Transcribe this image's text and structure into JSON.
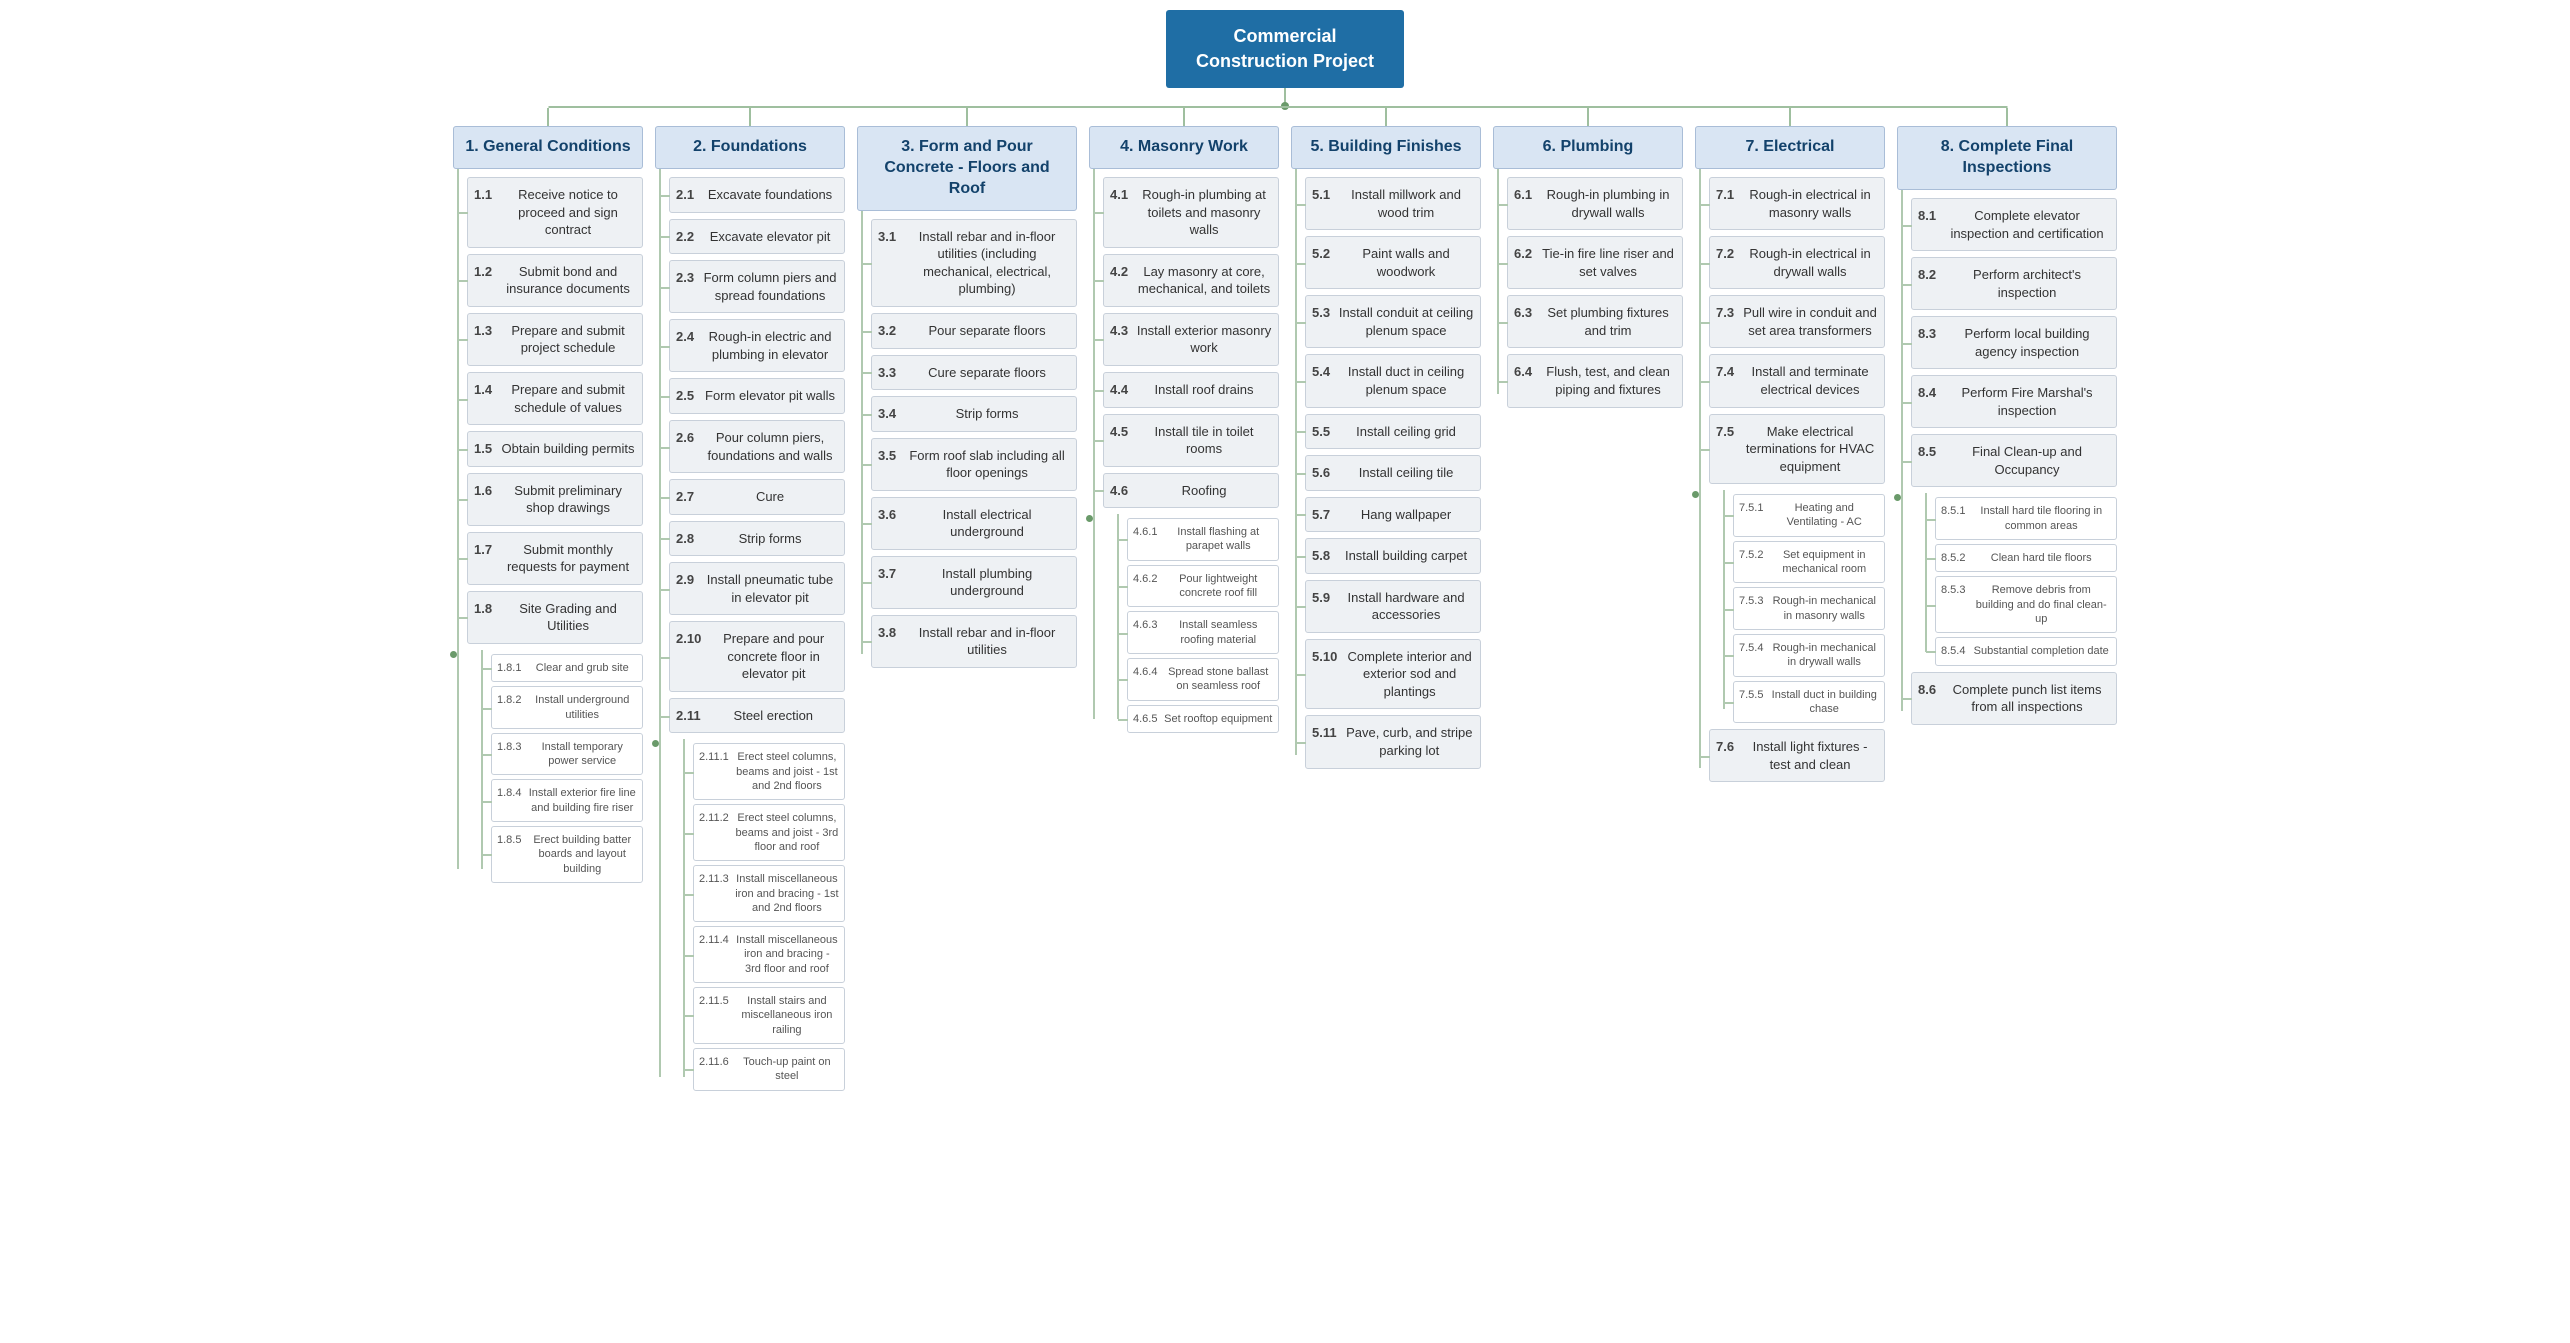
{
  "colors": {
    "root_bg": "#1f6ea5",
    "root_text": "#ffffff",
    "cat_bg": "#d9e5f3",
    "cat_text": "#13426b",
    "cat_border": "#a9bdd7",
    "item_bg": "#eef1f4",
    "item_border": "#c8d0da",
    "sub_bg": "#ffffff",
    "line": "#b0c9b0",
    "dot": "#6a9a6a",
    "page_bg": "#ffffff"
  },
  "typography": {
    "family": "Segoe UI, Arial, sans-serif",
    "root_fontsize": 18,
    "cat_fontsize": 16,
    "item_fontsize": 13,
    "sub_fontsize": 11
  },
  "layout": {
    "type": "tree",
    "orientation": "top-down-then-columns",
    "column_gap": 12,
    "item_gap": 6
  },
  "root": {
    "line1": "Commercial",
    "line2": "Construction Project"
  },
  "columns": [
    {
      "num": "1.",
      "title": "General Conditions",
      "width": "col-w",
      "items": [
        {
          "num": "1.1",
          "label": "Receive notice to proceed and sign contract"
        },
        {
          "num": "1.2",
          "label": "Submit bond and insurance documents"
        },
        {
          "num": "1.3",
          "label": "Prepare and submit project schedule"
        },
        {
          "num": "1.4",
          "label": "Prepare and submit schedule of values"
        },
        {
          "num": "1.5",
          "label": "Obtain building permits"
        },
        {
          "num": "1.6",
          "label": "Submit preliminary shop drawings"
        },
        {
          "num": "1.7",
          "label": "Submit monthly requests for payment"
        },
        {
          "num": "1.8",
          "label": "Site Grading and Utilities",
          "children": [
            {
              "num": "1.8.1",
              "label": "Clear and grub site"
            },
            {
              "num": "1.8.2",
              "label": "Install underground utilities"
            },
            {
              "num": "1.8.3",
              "label": "Install temporary power service"
            },
            {
              "num": "1.8.4",
              "label": "Install exterior fire line and building fire riser"
            },
            {
              "num": "1.8.5",
              "label": "Erect building batter boards and layout building"
            }
          ]
        }
      ]
    },
    {
      "num": "2.",
      "title": "Foundations",
      "width": "col-w",
      "items": [
        {
          "num": "2.1",
          "label": "Excavate foundations"
        },
        {
          "num": "2.2",
          "label": "Excavate elevator pit"
        },
        {
          "num": "2.3",
          "label": "Form column piers and spread foundations"
        },
        {
          "num": "2.4",
          "label": "Rough-in electric and plumbing in elevator"
        },
        {
          "num": "2.5",
          "label": "Form elevator pit walls"
        },
        {
          "num": "2.6",
          "label": "Pour column piers, foundations and walls"
        },
        {
          "num": "2.7",
          "label": "Cure"
        },
        {
          "num": "2.8",
          "label": "Strip forms"
        },
        {
          "num": "2.9",
          "label": "Install pneumatic tube in elevator pit"
        },
        {
          "num": "2.10",
          "label": "Prepare and pour concrete floor in elevator pit"
        },
        {
          "num": "2.11",
          "label": "Steel erection",
          "children": [
            {
              "num": "2.11.1",
              "label": "Erect steel columns, beams and joist - 1st and 2nd floors"
            },
            {
              "num": "2.11.2",
              "label": "Erect steel columns, beams and joist - 3rd floor and roof"
            },
            {
              "num": "2.11.3",
              "label": "Install miscellaneous iron and bracing - 1st and 2nd floors"
            },
            {
              "num": "2.11.4",
              "label": "Install miscellaneous iron and bracing - 3rd floor and roof"
            },
            {
              "num": "2.11.5",
              "label": "Install stairs and miscellaneous iron railing"
            },
            {
              "num": "2.11.6",
              "label": "Touch-up paint on steel"
            }
          ]
        }
      ]
    },
    {
      "num": "3.",
      "title": "Form and Pour Concrete - Floors and Roof",
      "width": "col-w2",
      "items": [
        {
          "num": "3.1",
          "label": "Install rebar and in-floor utilities (including mechanical, electrical, plumbing)"
        },
        {
          "num": "3.2",
          "label": "Pour separate floors"
        },
        {
          "num": "3.3",
          "label": "Cure separate floors"
        },
        {
          "num": "3.4",
          "label": "Strip forms"
        },
        {
          "num": "3.5",
          "label": "Form roof slab including all floor openings"
        },
        {
          "num": "3.6",
          "label": "Install electrical underground"
        },
        {
          "num": "3.7",
          "label": "Install plumbing underground"
        },
        {
          "num": "3.8",
          "label": "Install rebar and in-floor utilities"
        }
      ]
    },
    {
      "num": "4.",
      "title": "Masonry Work",
      "width": "col-w",
      "items": [
        {
          "num": "4.1",
          "label": "Rough-in plumbing at toilets and masonry walls"
        },
        {
          "num": "4.2",
          "label": "Lay masonry at core, mechanical, and toilets"
        },
        {
          "num": "4.3",
          "label": "Install exterior masonry work"
        },
        {
          "num": "4.4",
          "label": "Install roof drains"
        },
        {
          "num": "4.5",
          "label": "Install tile in toilet rooms"
        },
        {
          "num": "4.6",
          "label": "Roofing",
          "children": [
            {
              "num": "4.6.1",
              "label": "Install flashing at parapet walls"
            },
            {
              "num": "4.6.2",
              "label": "Pour lightweight concrete roof fill"
            },
            {
              "num": "4.6.3",
              "label": "Install seamless roofing material"
            },
            {
              "num": "4.6.4",
              "label": "Spread stone ballast on seamless roof"
            },
            {
              "num": "4.6.5",
              "label": "Set rooftop equipment"
            }
          ]
        }
      ]
    },
    {
      "num": "5.",
      "title": "Building Finishes",
      "width": "col-w",
      "items": [
        {
          "num": "5.1",
          "label": "Install millwork and wood trim"
        },
        {
          "num": "5.2",
          "label": "Paint walls and woodwork"
        },
        {
          "num": "5.3",
          "label": "Install conduit at ceiling plenum space"
        },
        {
          "num": "5.4",
          "label": "Install duct in ceiling plenum space"
        },
        {
          "num": "5.5",
          "label": "Install ceiling grid"
        },
        {
          "num": "5.6",
          "label": "Install ceiling tile"
        },
        {
          "num": "5.7",
          "label": "Hang wallpaper"
        },
        {
          "num": "5.8",
          "label": "Install building carpet"
        },
        {
          "num": "5.9",
          "label": "Install hardware and accessories"
        },
        {
          "num": "5.10",
          "label": "Complete interior and exterior sod and plantings"
        },
        {
          "num": "5.11",
          "label": "Pave, curb, and stripe parking lot"
        }
      ]
    },
    {
      "num": "6.",
      "title": "Plumbing",
      "width": "col-w",
      "items": [
        {
          "num": "6.1",
          "label": "Rough-in plumbing in drywall walls"
        },
        {
          "num": "6.2",
          "label": "Tie-in fire line riser and set valves"
        },
        {
          "num": "6.3",
          "label": "Set plumbing fixtures and trim"
        },
        {
          "num": "6.4",
          "label": "Flush, test, and clean piping and fixtures"
        }
      ]
    },
    {
      "num": "7.",
      "title": "Electrical",
      "width": "col-w",
      "items": [
        {
          "num": "7.1",
          "label": "Rough-in electrical in masonry walls"
        },
        {
          "num": "7.2",
          "label": "Rough-in electrical in drywall walls"
        },
        {
          "num": "7.3",
          "label": "Pull wire in conduit and set area transformers"
        },
        {
          "num": "7.4",
          "label": "Install and terminate electrical devices"
        },
        {
          "num": "7.5",
          "label": "Make electrical terminations for HVAC equipment",
          "children": [
            {
              "num": "7.5.1",
              "label": "Heating and Ventilating - AC"
            },
            {
              "num": "7.5.2",
              "label": "Set equipment in mechanical room"
            },
            {
              "num": "7.5.3",
              "label": "Rough-in mechanical in masonry walls"
            },
            {
              "num": "7.5.4",
              "label": "Rough-in mechanical in drywall walls"
            },
            {
              "num": "7.5.5",
              "label": "Install duct in building chase"
            }
          ]
        },
        {
          "num": "7.6",
          "label": "Install light fixtures - test and clean"
        }
      ]
    },
    {
      "num": "8.",
      "title": "Complete Final Inspections",
      "width": "col-w2",
      "items": [
        {
          "num": "8.1",
          "label": "Complete elevator inspection and certification"
        },
        {
          "num": "8.2",
          "label": "Perform architect's inspection"
        },
        {
          "num": "8.3",
          "label": "Perform local building agency inspection"
        },
        {
          "num": "8.4",
          "label": "Perform Fire Marshal's inspection"
        },
        {
          "num": "8.5",
          "label": "Final Clean-up and Occupancy",
          "children": [
            {
              "num": "8.5.1",
              "label": "Install hard tile flooring in common areas"
            },
            {
              "num": "8.5.2",
              "label": "Clean hard tile floors"
            },
            {
              "num": "8.5.3",
              "label": "Remove debris from building and do final clean-up"
            },
            {
              "num": "8.5.4",
              "label": "Substantial completion date"
            }
          ]
        },
        {
          "num": "8.6",
          "label": "Complete punch list items from all inspections"
        }
      ]
    }
  ]
}
